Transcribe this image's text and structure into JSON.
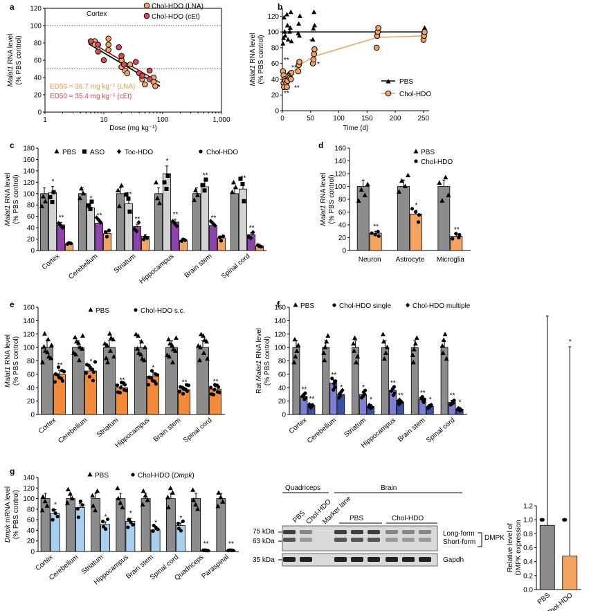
{
  "chart_data": [
    {
      "panel": "a",
      "type": "scatter",
      "scale_x": "log",
      "title": "Cortex",
      "xlabel": "Dose (mg kg⁻¹)",
      "ylabel_gene": "Malat1",
      "ylabel_rest": " RNA level",
      "ylabel2": "(% PBS control)",
      "xlim": [
        1,
        1000
      ],
      "ylim": [
        0,
        120
      ],
      "xticks": [
        1,
        10,
        100,
        1000
      ],
      "xticklabels": [
        "1",
        "10",
        "100",
        "1,000"
      ],
      "yticks": [
        0,
        20,
        40,
        60,
        80,
        100,
        120
      ],
      "reference_lines": [
        100,
        50
      ],
      "series": [
        {
          "name": "Chol-HDO (LNA)",
          "color": "#f4a460",
          "x": [
            7,
            7,
            12,
            12,
            12,
            20,
            20,
            23,
            25,
            28,
            45,
            45,
            50,
            70,
            70,
            75
          ],
          "y": [
            82,
            78,
            85,
            78,
            72,
            60,
            52,
            48,
            45,
            55,
            40,
            38,
            32,
            40,
            35,
            30
          ],
          "fit": [
            [
              5.5,
              79
            ],
            [
              90,
              30
            ]
          ]
        },
        {
          "name": "Chol-HDO (cEt)",
          "color": "#dc4c56",
          "x": [
            6,
            8,
            8,
            10,
            18,
            20,
            22,
            35,
            40,
            45,
            60,
            60
          ],
          "y": [
            82,
            78,
            70,
            60,
            75,
            65,
            55,
            58,
            45,
            42,
            48,
            38
          ],
          "fit": [
            [
              5.5,
              82
            ],
            [
              90,
              34
            ]
          ]
        }
      ],
      "annotations": [
        "ED50 = 36.7 mg kg⁻¹ (LNA)",
        "ED50 = 35.4 mg kg⁻¹ (cEt)"
      ]
    },
    {
      "panel": "b",
      "type": "line",
      "xlabel": "Time (d)",
      "ylabel_gene": "Malat1",
      "ylabel_rest": " RNA level",
      "ylabel2": "(% PBS control)",
      "xlim": [
        0,
        260
      ],
      "ylim": [
        0,
        130
      ],
      "xticks": [
        0,
        50,
        100,
        150,
        200,
        250
      ],
      "yticks": [
        0,
        20,
        40,
        60,
        80,
        100,
        120
      ],
      "series": [
        {
          "name": "PBS",
          "color": "#000000",
          "x": [
            0,
            250
          ],
          "y": [
            100,
            100
          ],
          "points_x": [
            1,
            2,
            3,
            4,
            5,
            8,
            9,
            10,
            13,
            14,
            15,
            16,
            28,
            29,
            30,
            31,
            54,
            55,
            56,
            57,
            168,
            169,
            170,
            250,
            251,
            252
          ],
          "points_y": [
            85,
            92,
            118,
            100,
            95,
            122,
            108,
            90,
            100,
            105,
            125,
            88,
            98,
            110,
            95,
            120,
            90,
            104,
            125,
            108,
            100,
            95,
            105,
            100,
            95,
            105
          ]
        },
        {
          "name": "Chol-HDO",
          "color": "#f4a460",
          "x": [
            2,
            7,
            14,
            28,
            56,
            168,
            250
          ],
          "y": [
            38,
            33,
            45,
            57,
            69,
            93,
            95
          ],
          "points_x": [
            1,
            2,
            2,
            3,
            4,
            5,
            7,
            8,
            9,
            13,
            14,
            15,
            16,
            28,
            29,
            30,
            54,
            55,
            56,
            57,
            167,
            168,
            169,
            170,
            250,
            251,
            252
          ],
          "points_y": [
            50,
            45,
            35,
            30,
            40,
            38,
            35,
            30,
            38,
            42,
            47,
            40,
            48,
            50,
            58,
            62,
            60,
            65,
            72,
            78,
            80,
            95,
            100,
            105,
            90,
            95,
            100
          ]
        }
      ],
      "annotations": [
        "**",
        "**",
        "**",
        "**",
        "**",
        "*",
        "*"
      ]
    },
    {
      "panel": "c",
      "type": "bar",
      "ylabel_gene": "Malat1",
      "ylabel_rest": " RNA level",
      "ylabel2": "(% PBS control)",
      "ylim": [
        0,
        180
      ],
      "yticks": [
        0,
        20,
        40,
        60,
        80,
        100,
        120,
        140,
        160,
        180
      ],
      "categories": [
        "Cortex",
        "Cerebellum",
        "Striatum",
        "Hippocampus",
        "Brain stem",
        "Spinal cord"
      ],
      "series": [
        {
          "name": "PBS",
          "color": "#8c8c8c",
          "values": [
            100,
            100,
            100,
            100,
            100,
            100
          ]
        },
        {
          "name": "ASO",
          "color": "#d3d3d3",
          "values": [
            102,
            75,
            82,
            135,
            112,
            108
          ]
        },
        {
          "name": "Toc-HDO",
          "color": "#8e44ad",
          "values": [
            45,
            48,
            42,
            50,
            44,
            28
          ]
        },
        {
          "name": "Chol-HDO",
          "color": "#f4a460",
          "values": [
            12,
            30,
            25,
            18,
            22,
            8
          ]
        }
      ],
      "sig": [
        [
          "*",
          "**"
        ],
        [
          "*",
          "**"
        ],
        [
          "**",
          "**"
        ],
        [
          "*",
          "**"
        ],
        [
          "**",
          "**"
        ],
        [
          "**",
          "**"
        ]
      ]
    },
    {
      "panel": "d",
      "type": "bar",
      "ylabel_gene": "Malat1",
      "ylabel_rest": " RNA level",
      "ylabel2": "(% PBS control)",
      "ylim": [
        0,
        160
      ],
      "yticks": [
        0,
        20,
        40,
        60,
        80,
        100,
        120,
        140,
        160
      ],
      "categories": [
        "Neuron",
        "Astrocyte",
        "Microglia"
      ],
      "series": [
        {
          "name": "PBS",
          "color": "#8c8c8c",
          "values": [
            100,
            100,
            100
          ]
        },
        {
          "name": "Chol-HDO",
          "color": "#f4a460",
          "values": [
            27,
            57,
            22
          ]
        }
      ],
      "sig": [
        [
          "**"
        ],
        [
          "*"
        ],
        [
          "**"
        ]
      ]
    },
    {
      "panel": "e",
      "type": "bar",
      "ylabel_gene": "Malat1",
      "ylabel_rest": " RNA level",
      "ylabel2": "(% PBS control)",
      "ylim": [
        0,
        160
      ],
      "yticks": [
        0,
        20,
        40,
        60,
        80,
        100,
        120,
        140,
        160
      ],
      "categories": [
        "Cortex",
        "Cerebellum",
        "Striatum",
        "Hippocampus",
        "Brain stem",
        "Spinal cord"
      ],
      "series": [
        {
          "name": "PBS",
          "color": "#8c8c8c",
          "values": [
            100,
            100,
            100,
            100,
            100,
            100
          ]
        },
        {
          "name": "Chol-HDO s.c.",
          "color": "#f28a3a",
          "values": [
            60,
            65,
            40,
            57,
            37,
            38
          ]
        }
      ],
      "sig": [
        [
          "**"
        ],
        [
          "*"
        ],
        [
          "**"
        ],
        [
          "*"
        ],
        [
          "**"
        ],
        [
          "**"
        ]
      ]
    },
    {
      "panel": "f",
      "type": "bar",
      "ylabel_pre": "Rat ",
      "ylabel_gene": "Malat1",
      "ylabel_rest": " RNA level",
      "ylabel2": "(% PBS control)",
      "ylim": [
        0,
        160
      ],
      "yticks": [
        0,
        20,
        40,
        60,
        80,
        100,
        120,
        140,
        160
      ],
      "categories": [
        "Cortex",
        "Cerebellum",
        "Striatum",
        "Hippocampus",
        "Brain stem",
        "Spinal cord"
      ],
      "series": [
        {
          "name": "PBS",
          "color": "#8c8c8c",
          "values": [
            100,
            100,
            100,
            100,
            100,
            100
          ]
        },
        {
          "name": "Chol-HDO single",
          "color": "#7b7fd6",
          "values": [
            27,
            47,
            30,
            36,
            22,
            18
          ]
        },
        {
          "name": "Chol-HDO multiple",
          "color": "#3a4fa8",
          "values": [
            13,
            30,
            12,
            18,
            12,
            8
          ]
        }
      ],
      "sig": [
        [
          "**",
          "**"
        ],
        [
          "**",
          "*"
        ],
        [
          "*",
          "*"
        ],
        [
          "**",
          "**"
        ],
        [
          "**",
          "*"
        ],
        [
          "**",
          "*"
        ]
      ]
    },
    {
      "panel": "g",
      "type": "bar",
      "ylabel_gene": "Dmpk",
      "ylabel_rest": " mRNA level",
      "ylabel2": "(% PBS control)",
      "ylim": [
        0,
        140
      ],
      "yticks": [
        0,
        20,
        40,
        60,
        80,
        100,
        120,
        140
      ],
      "categories": [
        "Cortex",
        "Cerebellum",
        "Striatum",
        "Hippocampus",
        "Brain stem",
        "Spinal cord",
        "Quadriceps",
        "Paraspinal"
      ],
      "series": [
        {
          "name": "PBS",
          "color": "#8c8c8c",
          "values": [
            100,
            100,
            100,
            100,
            100,
            100,
            100,
            100
          ]
        },
        {
          "name": "Chol-HDO (Dmpk)",
          "color": "#a8d0ee",
          "values": [
            72,
            83,
            51,
            57,
            41,
            49,
            2,
            2
          ]
        }
      ],
      "sig": [
        [
          "*"
        ],
        [
          ""
        ],
        [
          "*"
        ],
        [
          "*"
        ],
        [
          "*"
        ],
        [
          "*"
        ],
        [
          "**"
        ],
        [
          "**"
        ]
      ]
    },
    {
      "panel": "g-inset",
      "type": "bar",
      "ylabel": "Relative level of",
      "ylabel2": "DMPK expression",
      "ylim": [
        0,
        1.2
      ],
      "yticks": [
        0,
        0.2,
        0.4,
        0.6,
        0.8,
        1.0,
        1.2
      ],
      "categories": [
        "PBS",
        "Chol-HDO"
      ],
      "values": [
        0.92,
        0.48
      ],
      "colors": [
        "#8c8c8c",
        "#f4a460"
      ],
      "sig": [
        "",
        "*"
      ]
    }
  ],
  "panel_labels": [
    "a",
    "b",
    "c",
    "d",
    "e",
    "f",
    "g"
  ],
  "legends": {
    "a": [
      "Chol-HDO (LNA)",
      "Chol-HDO (cEt)"
    ],
    "b": [
      "PBS",
      "Chol-HDO"
    ],
    "c": [
      "PBS",
      "ASO",
      "Toc-HDO",
      "Chol-HDO"
    ],
    "d": [
      "PBS",
      "Chol-HDO"
    ],
    "e": [
      "PBS",
      "Chol-HDO s.c."
    ],
    "f": [
      "PBS",
      "Chol-HDO single",
      "Chol-HDO multiple"
    ],
    "g_pbs": "PBS",
    "g_chol": "Chol-HDO (",
    "g_gene": "Dmpk",
    "g_close": ")"
  },
  "blot": {
    "groups": [
      "Quadriceps",
      "Brain"
    ],
    "lanes": [
      "PBS",
      "Chol-HDO",
      "Marker lane"
    ],
    "sub_groups": [
      "PBS",
      "Chol-HDO"
    ],
    "markers": [
      "75 kDa",
      "63 kDa",
      "35 kDa"
    ],
    "right_labels": [
      "Long-form",
      "Short-form",
      "DMPK",
      "Gapdh"
    ]
  },
  "colors": {
    "pbs": "#8c8c8c",
    "chol": "#f4a460",
    "cet": "#dc4c56",
    "toc": "#8e44ad",
    "aso": "#d3d3d3",
    "sc": "#f28a3a",
    "single": "#7b7fd6",
    "multiple": "#3a4fa8",
    "dmpk": "#a8d0ee"
  }
}
